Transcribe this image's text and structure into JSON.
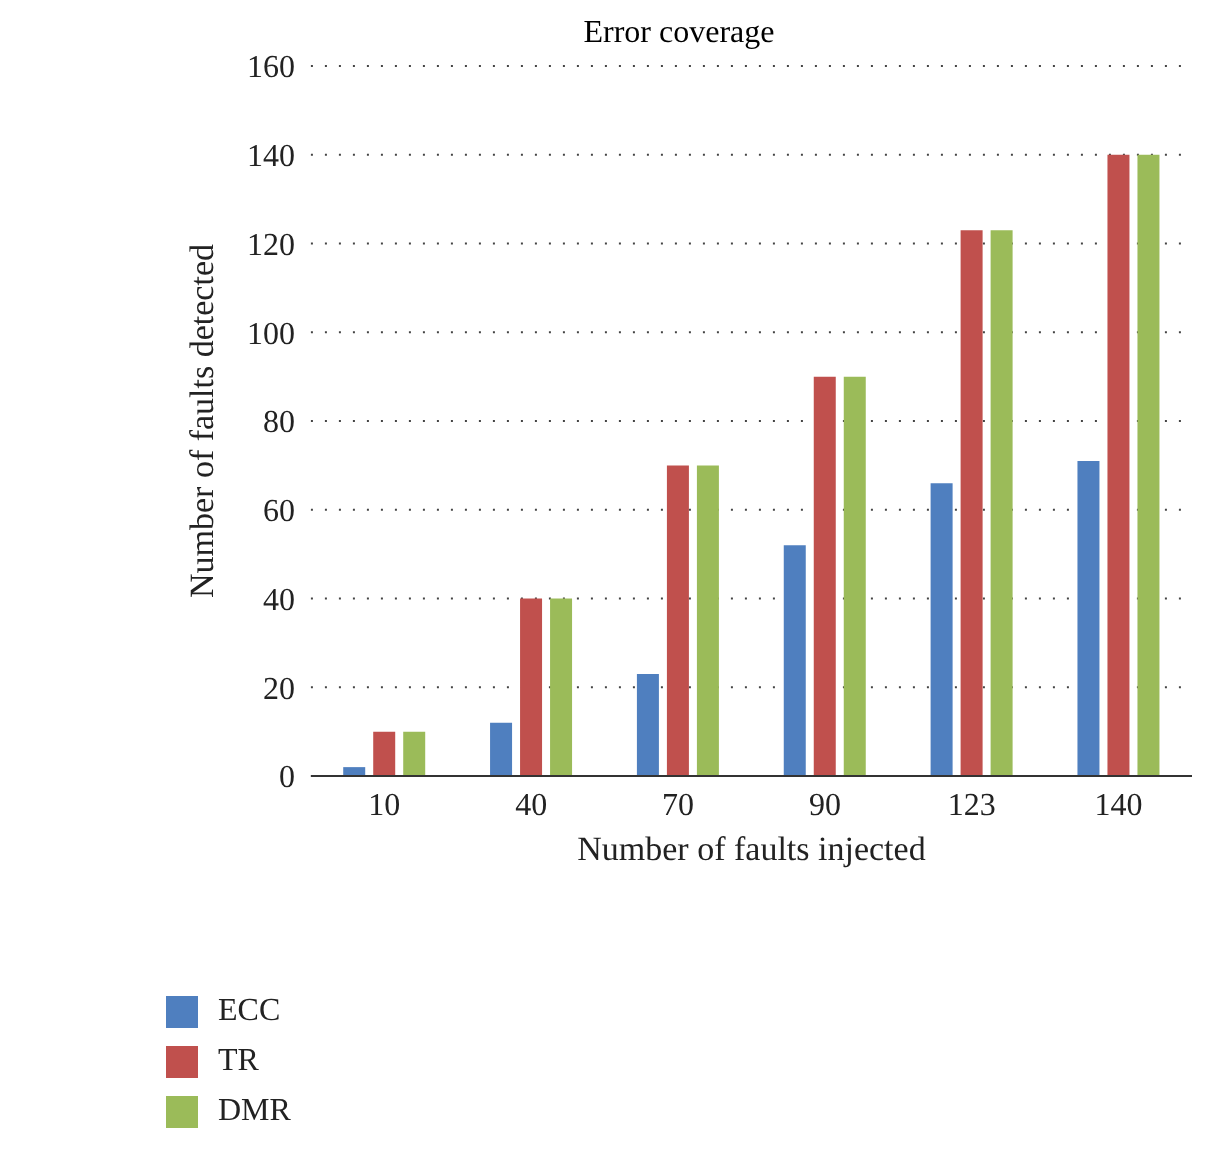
{
  "chart_data": {
    "type": "bar",
    "title": "Error coverage",
    "xlabel": "Number of faults injected",
    "ylabel": "Number of faults detected",
    "categories": [
      "10",
      "40",
      "70",
      "90",
      "123",
      "140"
    ],
    "series": [
      {
        "name": "ECC",
        "color": "#4f7fbf",
        "values": [
          2,
          12,
          23,
          52,
          66,
          71
        ]
      },
      {
        "name": "TR",
        "color": "#c0504d",
        "values": [
          10,
          40,
          70,
          90,
          123,
          140
        ]
      },
      {
        "name": "DMR",
        "color": "#9bbb59",
        "values": [
          10,
          40,
          70,
          90,
          123,
          140
        ]
      }
    ],
    "ylim": [
      0,
      160
    ],
    "yticks": [
      0,
      20,
      40,
      60,
      80,
      100,
      120,
      140,
      160
    ],
    "grid": "y",
    "legend": "bottom left"
  }
}
